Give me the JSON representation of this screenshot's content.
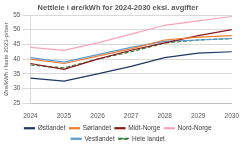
{
  "chart_data": {
    "type": "line",
    "title": "Nettleie i øre/kWh for 2024-2030 eksl. avgifter",
    "y_label": "Øre/kWh i faste 2023-priser",
    "categories": [
      "2024",
      "2025",
      "2026",
      "2027",
      "2028",
      "2029",
      "2030"
    ],
    "series": [
      {
        "name": "Østlandet",
        "color": "#1f3864",
        "line_style": "solid",
        "marker": "none",
        "values": [
          33.5,
          32.5,
          35,
          37.5,
          40.5,
          42,
          42.5
        ]
      },
      {
        "name": "Sørlandet",
        "color": "#ed7d31",
        "line_style": "solid",
        "marker": "none",
        "values": [
          40,
          38.5,
          41,
          43.5,
          46.5,
          47.5,
          48
        ]
      },
      {
        "name": "Midt-Norge",
        "color": "#8b1a1a",
        "line_style": "solid",
        "marker": "none",
        "values": [
          38.5,
          36.5,
          40,
          43,
          45.5,
          48,
          50
        ]
      },
      {
        "name": "Nord-Norge",
        "color": "#f4a6b7",
        "line_style": "solid",
        "marker": "none",
        "values": [
          44,
          43,
          45.5,
          48.5,
          51.5,
          53,
          54.5
        ]
      },
      {
        "name": "Vestlandet",
        "color": "#5b9bd5",
        "line_style": "solid",
        "marker": "none",
        "values": [
          40.5,
          39,
          41.5,
          44,
          46,
          46.5,
          47
        ]
      },
      {
        "name": "Hele landet",
        "color": "#2e7d32",
        "line_style": "dashed",
        "marker": "none",
        "values": [
          38,
          37,
          40,
          42.5,
          45.5,
          46.5,
          47
        ]
      }
    ],
    "ylim": [
      25,
      55
    ],
    "yticks": [
      25,
      30,
      35,
      40,
      45,
      50,
      55
    ],
    "grid": true,
    "legend": "bottom"
  }
}
